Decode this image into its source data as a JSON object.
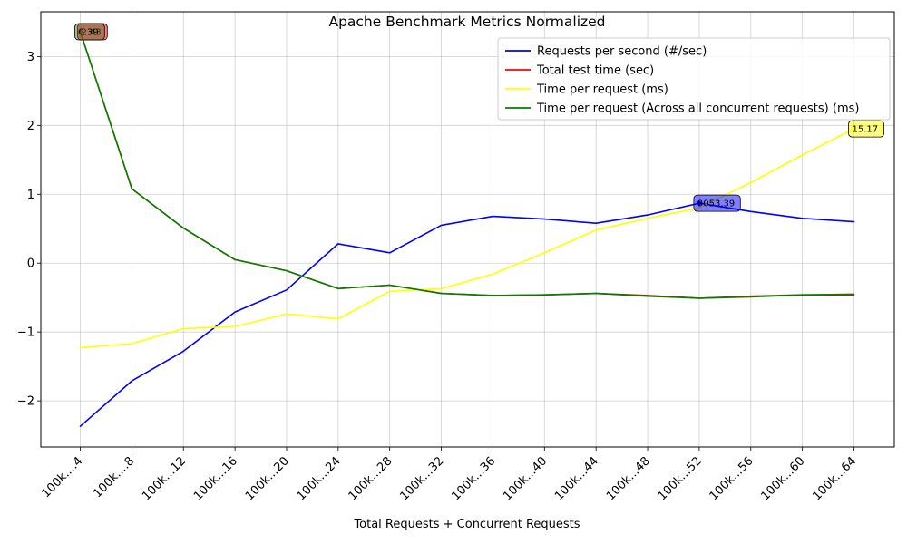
{
  "chart_data": {
    "type": "line",
    "title": "Apache Benchmark Metrics Normalized",
    "xlabel": "Total Requests + Concurrent Requests",
    "ylabel": "",
    "categories": [
      "100k....4",
      "100k....8",
      "100k...12",
      "100k...16",
      "100k...20",
      "100k...24",
      "100k...28",
      "100k...32",
      "100k...36",
      "100k...40",
      "100k...44",
      "100k...48",
      "100k...52",
      "100k...56",
      "100k...60",
      "100k...64"
    ],
    "yticks": [
      -2,
      -1,
      0,
      1,
      2,
      3
    ],
    "ytick_labels": [
      "−2",
      "−1",
      "0",
      "1",
      "2",
      "3"
    ],
    "ylim": [
      -2.67,
      3.65
    ],
    "grid": true,
    "legend_position": "top-right",
    "series": [
      {
        "name": "Requests per second (#/sec)",
        "color": "#0000ff",
        "values": [
          -2.37,
          -1.71,
          -1.28,
          -0.71,
          -0.39,
          0.28,
          0.15,
          0.55,
          0.68,
          0.64,
          0.58,
          0.7,
          0.87,
          0.75,
          0.65,
          0.6
        ]
      },
      {
        "name": "Total test time (sec)",
        "color": "#ff0000",
        "values": [
          3.36,
          1.08,
          0.51,
          0.05,
          -0.11,
          -0.37,
          -0.32,
          -0.44,
          -0.47,
          -0.46,
          -0.44,
          -0.47,
          -0.51,
          -0.48,
          -0.46,
          -0.45
        ]
      },
      {
        "name": "Time per request (ms)",
        "color": "#ffff00",
        "values": [
          -1.23,
          -1.17,
          -0.95,
          -0.92,
          -0.74,
          -0.81,
          -0.41,
          -0.37,
          -0.16,
          0.15,
          0.48,
          0.65,
          0.8,
          1.17,
          1.57,
          1.95
        ]
      },
      {
        "name": "Time per request (Across all concurrent requests) (ms)",
        "color": "#008000",
        "values": [
          3.36,
          1.08,
          0.51,
          0.05,
          -0.11,
          -0.37,
          -0.32,
          -0.44,
          -0.47,
          -0.46,
          -0.44,
          -0.48,
          -0.51,
          -0.49,
          -0.46,
          -0.46
        ]
      }
    ],
    "annotations": [
      {
        "text": "2.43",
        "series": 1,
        "index": 0,
        "color": "#ff0000"
      },
      {
        "text": "0.39",
        "series": 3,
        "index": 0,
        "color": "#556b2f"
      },
      {
        "text": "9053.39",
        "series": 0,
        "index": 12,
        "color": "#0000ff"
      },
      {
        "text": "15.17",
        "series": 2,
        "index": 15,
        "color": "#ffff00"
      }
    ]
  }
}
